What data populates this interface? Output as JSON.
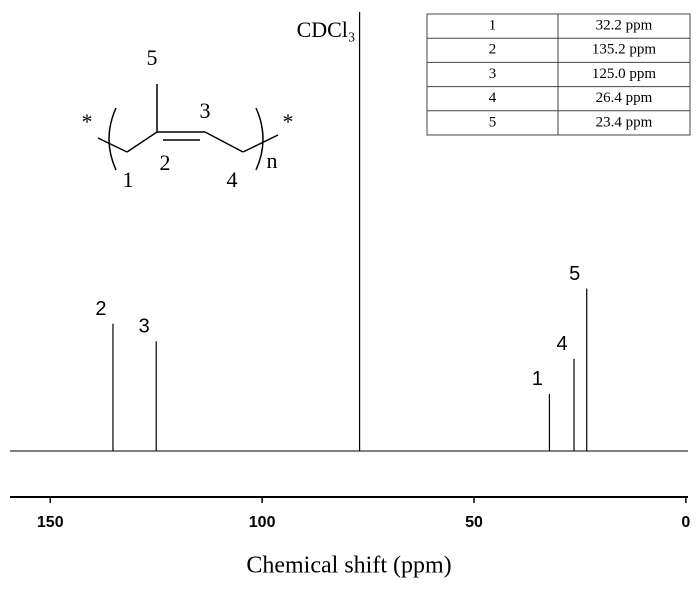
{
  "chart_data": {
    "type": "stem",
    "xlabel": "Chemical shift (ppm)",
    "x": [
      135.2,
      125.0,
      77.0,
      32.2,
      26.4,
      23.4
    ],
    "values": [
      29,
      25,
      100,
      13,
      21,
      37
    ],
    "peak_labels": [
      "2",
      "3",
      "CDCl₃",
      "1",
      "4",
      "5"
    ],
    "xlim": [
      159.5,
      -0.5
    ],
    "xticks": [
      150,
      100,
      50,
      0
    ],
    "ylim": [
      0,
      100
    ],
    "color": "#000000"
  },
  "table": {
    "rows": [
      [
        "1",
        "32.2 ppm"
      ],
      [
        "2",
        "135.2 ppm"
      ],
      [
        "3",
        "125.0 ppm"
      ],
      [
        "4",
        "26.4 ppm"
      ],
      [
        "5",
        "23.4 ppm"
      ]
    ]
  },
  "structure": {
    "labels": [
      "*",
      "5",
      "3",
      "2",
      "1",
      "4",
      "n",
      "*"
    ]
  }
}
